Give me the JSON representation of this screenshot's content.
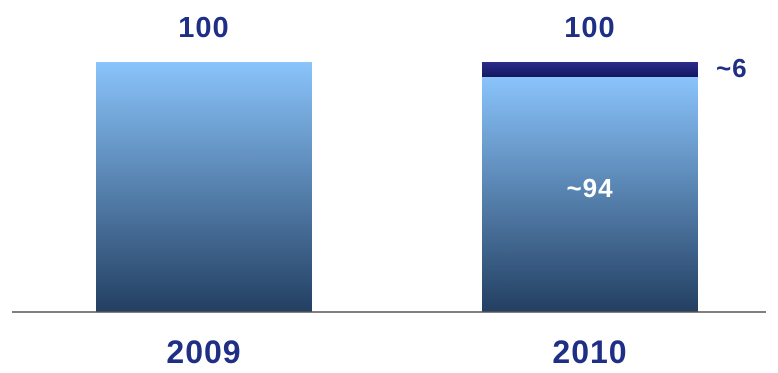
{
  "chart_data": {
    "type": "bar",
    "stacked": true,
    "categories": [
      "2009",
      "2010"
    ],
    "series": [
      {
        "values": [
          100,
          94
        ],
        "value_labels": [
          "",
          "~94"
        ],
        "color_top": "#8ac4fb",
        "color_bottom": "#233f62"
      },
      {
        "values": [
          0,
          6
        ],
        "value_labels": [
          "",
          "~6"
        ],
        "color_top": "#2a2d8c",
        "color_bottom": "#14185e"
      }
    ],
    "totals": [
      "100",
      "100"
    ],
    "ylim": [
      0,
      100
    ],
    "colors": {
      "text": "#1f2f86",
      "inner_label": "#ffffff",
      "baseline": "#555555"
    }
  }
}
